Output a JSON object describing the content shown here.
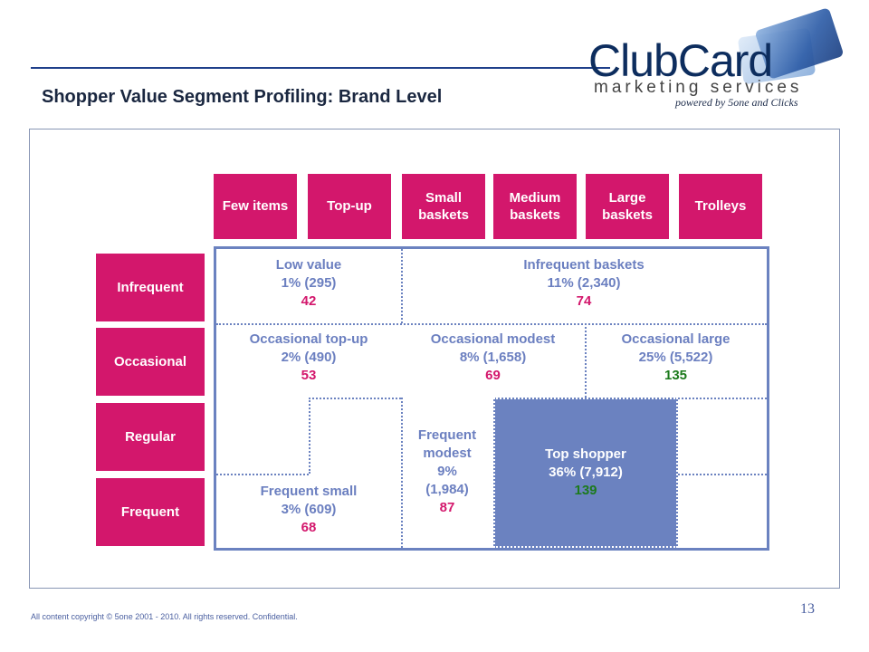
{
  "title": "Shopper Value Segment Profiling: Brand Level",
  "logo": {
    "main": "ClubCard",
    "sub": "marketing services",
    "tagline": "powered by 5one and Clicks"
  },
  "columns": [
    "Few items",
    "Top-up",
    "Small baskets",
    "Medium baskets",
    "Large baskets",
    "Trolleys"
  ],
  "rows": [
    "Infrequent",
    "Occasional",
    "Regular",
    "Frequent"
  ],
  "segments": {
    "low_value": {
      "name": "Low value",
      "share": "1% (295)",
      "index": "42"
    },
    "infrequent_baskets": {
      "name": "Infrequent baskets",
      "share": "11% (2,340)",
      "index": "74"
    },
    "occasional_topup": {
      "name": "Occasional top-up",
      "share": "2% (490)",
      "index": "53"
    },
    "occasional_modest": {
      "name": "Occasional modest",
      "share": "8% (1,658)",
      "index": "69"
    },
    "occasional_large": {
      "name": "Occasional large",
      "share": "25% (5,522)",
      "index": "135"
    },
    "frequent_small": {
      "name": "Frequent small",
      "share": "3% (609)",
      "index": "68"
    },
    "frequent_modest": {
      "name_line1": "Frequent",
      "name_line2": "modest",
      "share_pct": "9%",
      "share_count": "(1,984)",
      "index": "87"
    },
    "top_shopper": {
      "name": "Top shopper",
      "share": "36% (7,912)",
      "index": "139"
    }
  },
  "colors": {
    "accent": "#d3176c",
    "grid": "#6b82c0",
    "positive": "#1c7a1c",
    "title": "#1a2740"
  },
  "footer": {
    "copyright": "All content copyright © 5one 2001 - 2010. All rights reserved. Confidential.",
    "page": "13"
  }
}
